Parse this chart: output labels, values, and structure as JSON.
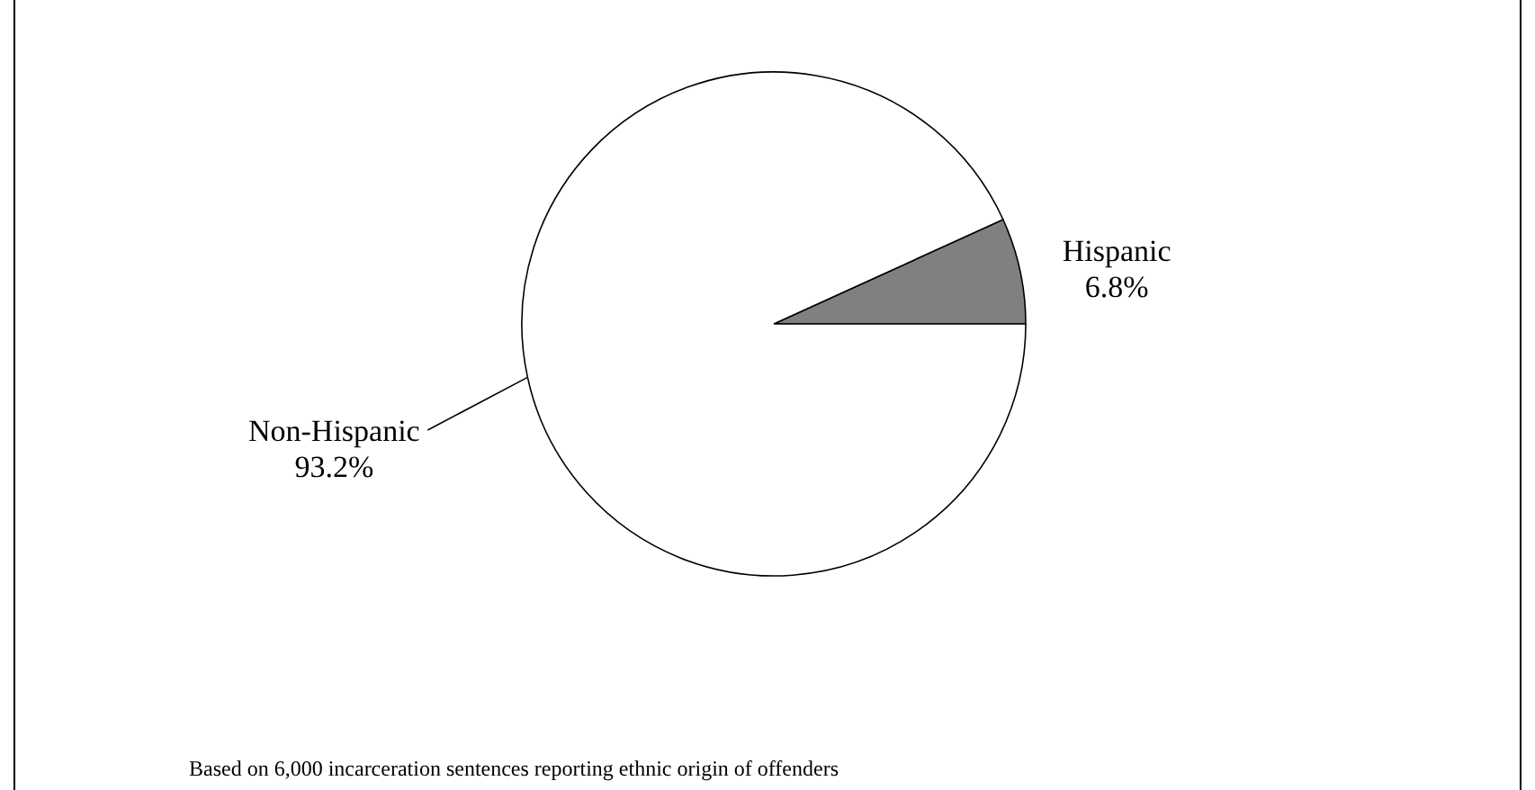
{
  "chart_data": {
    "type": "pie",
    "categories": [
      "Hispanic",
      "Non-Hispanic"
    ],
    "values": [
      6.8,
      93.2
    ],
    "colors": [
      "#808080",
      "#ffffff"
    ],
    "value_labels": [
      "6.8%",
      "93.2%"
    ],
    "annotations": [
      "Based on 6,000 incarceration sentences reporting ethnic origin of offenders"
    ]
  }
}
